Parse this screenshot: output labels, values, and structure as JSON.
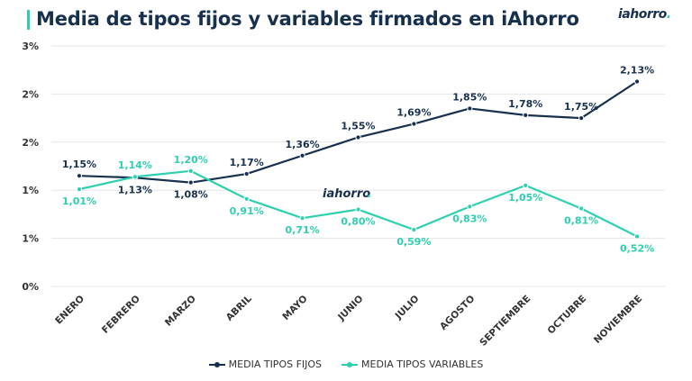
{
  "title": "Media de tipos fijos y variables firmados en iAhorro",
  "brand": {
    "name": "iahorro",
    "dot": "."
  },
  "colors": {
    "fijos": "#17304d",
    "variables": "#2ecfb0",
    "grid": "#e6e6e6",
    "text": "#333333"
  },
  "chart_data": {
    "type": "line",
    "categories": [
      "ENERO",
      "FEBRERO",
      "MARZO",
      "ABRIL",
      "MAYO",
      "JUNIO",
      "JULIO",
      "AGOSTO",
      "SEPTIEMBRE",
      "OCTUBRE",
      "NOVIEMBRE"
    ],
    "y_ticks": [
      "0%",
      "1%",
      "1%",
      "2%",
      "2%",
      "3%"
    ],
    "ylim": [
      0,
      2.5
    ],
    "grid": true,
    "legend_position": "bottom",
    "series": [
      {
        "name": "MEDIA TIPOS FIJOS",
        "values": [
          1.15,
          1.13,
          1.08,
          1.17,
          1.36,
          1.55,
          1.69,
          1.85,
          1.78,
          1.75,
          2.13
        ],
        "labels": [
          "1,15%",
          "1,13%",
          "1,08%",
          "1,17%",
          "1,36%",
          "1,55%",
          "1,69%",
          "1,85%",
          "1,78%",
          "1,75%",
          "2,13%"
        ]
      },
      {
        "name": "MEDIA TIPOS VARIABLES",
        "values": [
          1.01,
          1.14,
          1.2,
          0.91,
          0.71,
          0.8,
          0.59,
          0.83,
          1.05,
          0.81,
          0.52
        ],
        "labels": [
          "1,01%",
          "1,14%",
          "1,20%",
          "0,91%",
          "0,71%",
          "0,80%",
          "0,59%",
          "0,83%",
          "1,05%",
          "0,81%",
          "0,52%"
        ]
      }
    ]
  }
}
